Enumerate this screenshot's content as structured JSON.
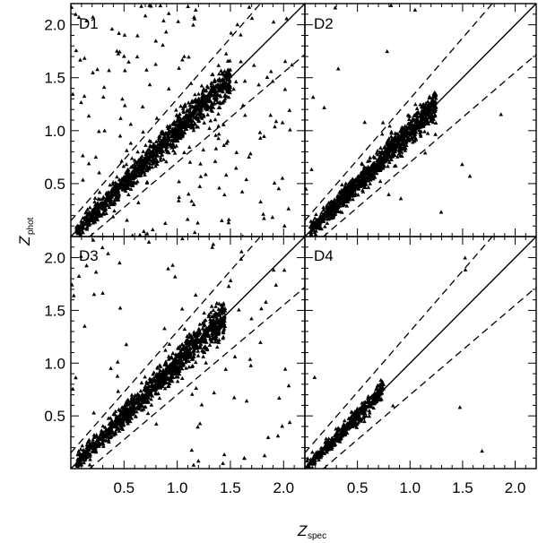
{
  "figure": {
    "xlabel_main": "Z",
    "xlabel_sub": "spec",
    "ylabel_main": "Z",
    "ylabel_sub": "phot"
  },
  "chart_data": [
    {
      "type": "scatter",
      "panel": "D1",
      "xlim": [
        0.0,
        2.2
      ],
      "ylim": [
        0.0,
        2.2
      ],
      "x_ticks": [],
      "y_ticks": [
        0.5,
        1.0,
        1.5,
        2.0
      ],
      "lines": {
        "identity_slope": 1,
        "dashed_band_offset": 0.15,
        "dashed_band_mode": "1+z"
      },
      "scatter": {
        "n_core": 1200,
        "core_min": 0.05,
        "core_max": 1.5,
        "core_sigma": 0.035,
        "n_outliers": 180,
        "marker": "triangle"
      }
    },
    {
      "type": "scatter",
      "panel": "D2",
      "xlim": [
        0.0,
        2.2
      ],
      "ylim": [
        0.0,
        2.2
      ],
      "x_ticks": [],
      "y_ticks": [],
      "lines": {
        "identity_slope": 1,
        "dashed_band_offset": 0.15,
        "dashed_band_mode": "1+z"
      },
      "scatter": {
        "n_core": 1100,
        "core_min": 0.05,
        "core_max": 1.25,
        "core_sigma": 0.035,
        "n_outliers": 20,
        "marker": "triangle"
      }
    },
    {
      "type": "scatter",
      "panel": "D3",
      "xlim": [
        0.0,
        2.2
      ],
      "ylim": [
        0.0,
        2.2
      ],
      "x_ticks": [],
      "y_ticks": [
        0.5,
        1.0,
        1.5,
        2.0
      ],
      "lines": {
        "identity_slope": 1,
        "dashed_band_offset": 0.15,
        "dashed_band_mode": "1+z"
      },
      "scatter": {
        "n_core": 1200,
        "core_min": 0.05,
        "core_max": 1.45,
        "core_sigma": 0.035,
        "n_outliers": 90,
        "marker": "triangle"
      }
    },
    {
      "type": "scatter",
      "panel": "D4",
      "xlim": [
        0.0,
        2.2
      ],
      "ylim": [
        0.0,
        2.2
      ],
      "x_ticks": [
        0.5,
        1.0,
        1.5,
        2.0
      ],
      "y_ticks": [],
      "lines": {
        "identity_slope": 1,
        "dashed_band_offset": 0.15,
        "dashed_band_mode": "1+z"
      },
      "scatter": {
        "n_core": 400,
        "core_min": 0.02,
        "core_max": 0.75,
        "core_sigma": 0.03,
        "n_outliers": 6,
        "marker": "triangle"
      }
    }
  ],
  "bottom_axis": {
    "left_ticks": [
      "0.5",
      "1.0",
      "1.5",
      "2.0"
    ],
    "right_ticks": [
      "0.5",
      "1.0",
      "1.5",
      "2.0"
    ]
  }
}
